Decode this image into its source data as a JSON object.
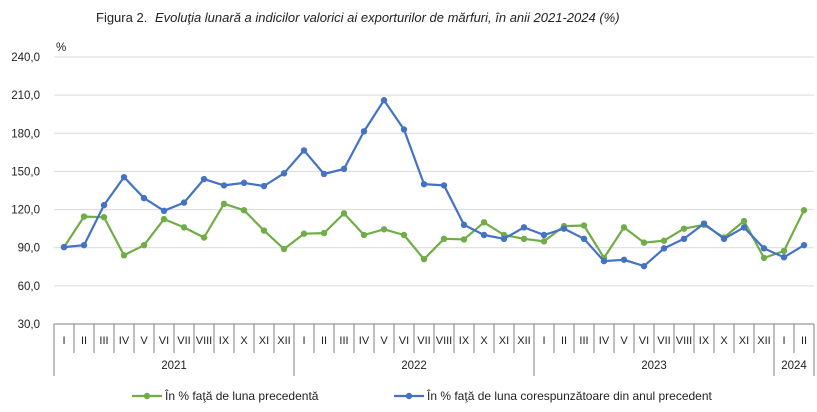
{
  "chart_data": {
    "type": "line",
    "title_prefix": "Figura 2.",
    "title": "Evoluţia lunară a indicilor valorici ai exporturilor de mărfuri, în anii 2021-2024 (%)",
    "ylabel": "%",
    "ylim": [
      30,
      240
    ],
    "yticks": [
      "30,0",
      "60,0",
      "90,0",
      "120,0",
      "150,0",
      "180,0",
      "210,0",
      "240,0"
    ],
    "ytick_values": [
      30,
      60,
      90,
      120,
      150,
      180,
      210,
      240
    ],
    "months": [
      "I",
      "II",
      "III",
      "IV",
      "V",
      "VI",
      "VII",
      "VIII",
      "IX",
      "X",
      "XI",
      "XII",
      "I",
      "II",
      "III",
      "IV",
      "V",
      "VI",
      "VII",
      "VIII",
      "IX",
      "X",
      "XI",
      "XII",
      "I",
      "II",
      "III",
      "IV",
      "V",
      "VI",
      "VII",
      "VIII",
      "IX",
      "X",
      "XI",
      "XII",
      "I",
      "II"
    ],
    "years": [
      {
        "label": "2021",
        "start": 0,
        "count": 12
      },
      {
        "label": "2022",
        "start": 12,
        "count": 12
      },
      {
        "label": "2023",
        "start": 24,
        "count": 12
      },
      {
        "label": "2024",
        "start": 36,
        "count": 2
      }
    ],
    "legend_position": "bottom",
    "series": [
      {
        "name": "În % faţă de luna precedentă",
        "color": "#70ad47",
        "values": [
          90.5,
          114.5,
          114.0,
          84.0,
          92.0,
          112.5,
          106.0,
          98.0,
          124.5,
          119.5,
          103.5,
          89.0,
          101.0,
          101.5,
          117.0,
          100.0,
          104.5,
          100.0,
          81.0,
          97.0,
          96.5,
          110.0,
          100.0,
          97.0,
          95.0,
          107.0,
          107.5,
          82.0,
          106.0,
          94.0,
          95.5,
          105.0,
          108.0,
          98.0,
          111.0,
          82.0,
          87.5,
          119.5
        ]
      },
      {
        "name": "În % faţă de luna corespunzătoare din anul precedent",
        "color": "#4472c4",
        "values": [
          90.5,
          92.0,
          123.5,
          145.5,
          129.0,
          119.0,
          125.5,
          144.0,
          139.0,
          141.0,
          138.5,
          148.5,
          166.5,
          148.0,
          152.0,
          181.5,
          206.0,
          183.0,
          140.0,
          139.0,
          108.0,
          100.0,
          97.0,
          106.0,
          100.0,
          105.0,
          97.0,
          79.5,
          80.5,
          75.5,
          89.5,
          97.0,
          109.0,
          97.0,
          106.0,
          89.5,
          82.5,
          92.0
        ]
      }
    ]
  }
}
